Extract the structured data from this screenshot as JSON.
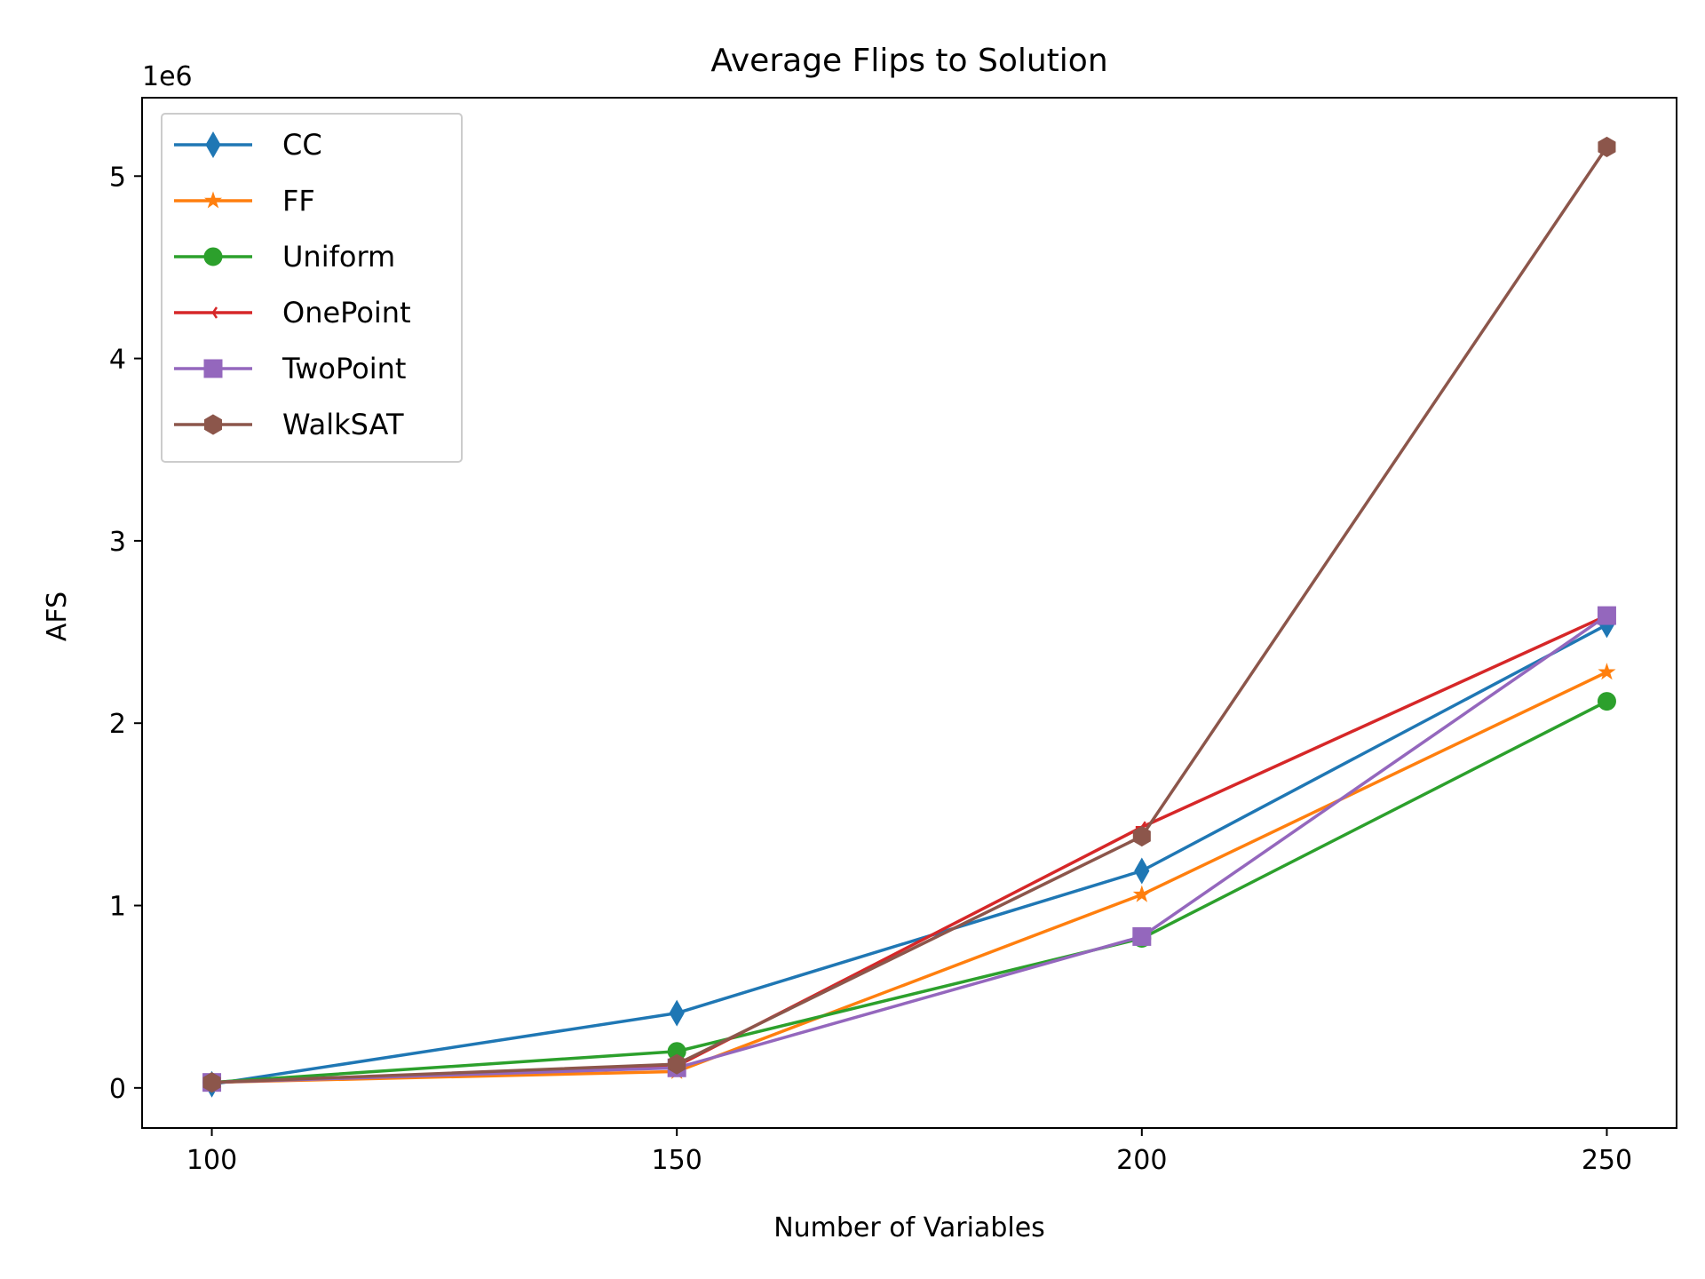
{
  "chart_data": {
    "type": "line",
    "title": "Average Flips to Solution",
    "xlabel": "Number of Variables",
    "ylabel": "AFS",
    "y_offset_label": "1e6",
    "x": [
      100,
      150,
      200,
      250
    ],
    "xticks": [
      100,
      150,
      200,
      250
    ],
    "yticks": [
      0,
      1,
      2,
      3,
      4,
      5
    ],
    "xlim": [
      92.5,
      257.5
    ],
    "ylim": [
      -0.22,
      5.43
    ],
    "grid": false,
    "legend_position": "upper-left",
    "series": [
      {
        "name": "CC",
        "color": "#1f77b4",
        "marker": "thin-diamond",
        "values": [
          0.02,
          0.41,
          1.19,
          2.54
        ]
      },
      {
        "name": "FF",
        "color": "#ff7f0e",
        "marker": "star",
        "values": [
          0.03,
          0.09,
          1.06,
          2.28
        ]
      },
      {
        "name": "Uniform",
        "color": "#2ca02c",
        "marker": "circle",
        "values": [
          0.03,
          0.2,
          0.82,
          2.12
        ]
      },
      {
        "name": "OnePoint",
        "color": "#d62728",
        "marker": "tri-left",
        "values": [
          0.03,
          0.12,
          1.43,
          2.59
        ]
      },
      {
        "name": "TwoPoint",
        "color": "#9467bd",
        "marker": "square",
        "values": [
          0.03,
          0.11,
          0.83,
          2.59
        ]
      },
      {
        "name": "WalkSAT",
        "color": "#8c564b",
        "marker": "hexagon",
        "values": [
          0.03,
          0.13,
          1.38,
          5.16
        ]
      }
    ]
  }
}
